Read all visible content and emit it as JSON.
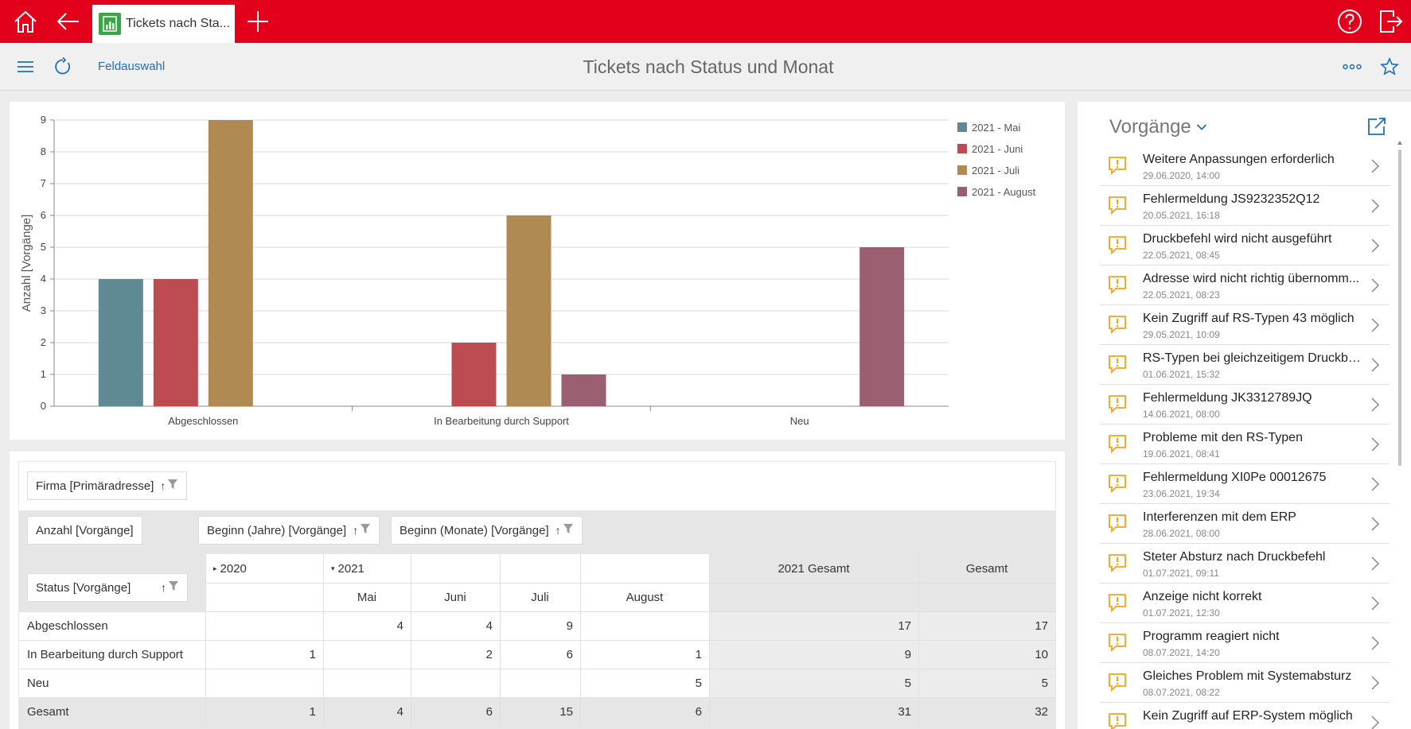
{
  "topbar": {
    "tab_title": "Tickets nach Sta...",
    "icons": [
      "home-icon",
      "back-icon",
      "add-tab-icon",
      "help-icon",
      "logout-icon"
    ]
  },
  "toolbar": {
    "field_selection": "Feldauswahl",
    "title": "Tickets nach Status und Monat",
    "icons": [
      "menu-icon",
      "refresh-icon",
      "more-icon",
      "favorite-star-icon"
    ]
  },
  "chart_data": {
    "type": "bar",
    "categories": [
      "Abgeschlossen",
      "In Bearbeitung durch Support",
      "Neu"
    ],
    "series": [
      {
        "name": "2021 - Mai",
        "color": "#5f8a93",
        "values": [
          4,
          0,
          0
        ]
      },
      {
        "name": "2021 - Juni",
        "color": "#bd4b52",
        "values": [
          4,
          2,
          0
        ]
      },
      {
        "name": "2021 - Juli",
        "color": "#b08a52",
        "values": [
          9,
          6,
          0
        ]
      },
      {
        "name": "2021 - August",
        "color": "#9a5f70",
        "values": [
          0,
          1,
          5
        ]
      }
    ],
    "ylabel": "Anzahl [Vorgänge]",
    "ylim": [
      0,
      9
    ],
    "yticks": [
      0,
      1,
      2,
      3,
      4,
      5,
      6,
      7,
      8,
      9
    ],
    "grid": true,
    "legend": "top-right"
  },
  "pivot": {
    "filter_field": "Firma [Primäradresse]",
    "data_field": "Anzahl [Vorgänge]",
    "column_fields": [
      "Beginn (Jahre) [Vorgänge]",
      "Beginn (Monate) [Vorgänge]"
    ],
    "row_field": "Status [Vorgänge]",
    "year_2020": "2020",
    "year_2021": "2021",
    "total_2021": "2021 Gesamt",
    "grand_total": "Gesamt",
    "months": [
      "Mai",
      "Juni",
      "Juli",
      "August"
    ],
    "rows": [
      {
        "label": "Abgeschlossen",
        "cells": [
          "",
          "4",
          "4",
          "9",
          "",
          "17",
          "17"
        ]
      },
      {
        "label": "In Bearbeitung durch Support",
        "cells": [
          "1",
          "",
          "2",
          "6",
          "1",
          "9",
          "10"
        ]
      },
      {
        "label": "Neu",
        "cells": [
          "",
          "",
          "",
          "",
          "5",
          "5",
          "5"
        ]
      },
      {
        "label": "Gesamt",
        "cells": [
          "1",
          "4",
          "6",
          "15",
          "6",
          "31",
          "32"
        ]
      }
    ]
  },
  "vorgaenge": {
    "title": "Vorgänge",
    "items": [
      {
        "title": "Weitere Anpassungen erforderlich",
        "date": "29.06.2020, 14:00"
      },
      {
        "title": "Fehlermeldung JS9232352Q12",
        "date": "20.05.2021, 16:18"
      },
      {
        "title": "Druckbefehl wird nicht ausgeführt",
        "date": "22.05.2021, 08:45"
      },
      {
        "title": "Adresse wird nicht richtig übernomm...",
        "date": "22.05.2021, 08:23"
      },
      {
        "title": "Kein Zugriff auf RS-Typen 43 möglich",
        "date": "29.05.2021, 10:09"
      },
      {
        "title": "RS-Typen bei gleichzeitigem Druckbe...",
        "date": "01.06.2021, 15:32"
      },
      {
        "title": "Fehlermeldung JK3312789JQ",
        "date": "14.06.2021, 08:00"
      },
      {
        "title": "Probleme mit den RS-Typen",
        "date": "19.06.2021, 08:41"
      },
      {
        "title": "Fehlermeldung XI0Pe 00012675",
        "date": "23.06.2021, 19:34"
      },
      {
        "title": "Interferenzen mit dem ERP",
        "date": "28.06.2021, 08:00"
      },
      {
        "title": "Steter Absturz nach Druckbefehl",
        "date": "01.07.2021, 09:11"
      },
      {
        "title": "Anzeige nicht korrekt",
        "date": "01.07.2021, 12:30"
      },
      {
        "title": "Programm reagiert nicht",
        "date": "08.07.2021, 14:20"
      },
      {
        "title": "Gleiches Problem mit Systemabsturz",
        "date": "08.07.2021, 08:22"
      },
      {
        "title": "Kein Zugriff auf ERP-System möglich",
        "date": ""
      }
    ]
  }
}
